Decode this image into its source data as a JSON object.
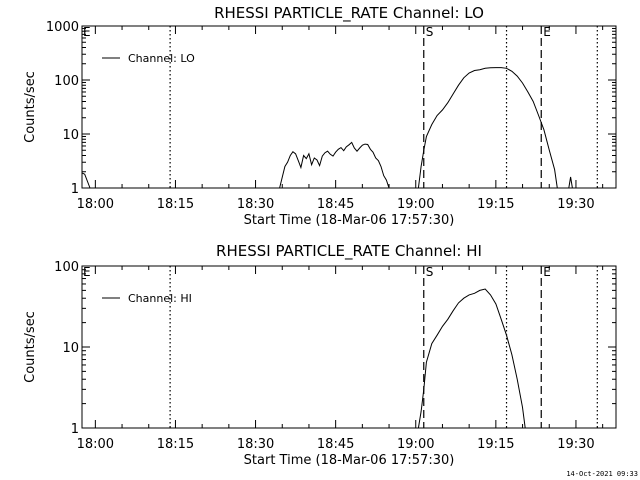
{
  "footer": {
    "timestamp": "14-Oct-2021 09:33"
  },
  "chart_data": [
    {
      "type": "line",
      "title": "RHESSI PARTICLE_RATE Channel: LO",
      "xlabel": "Start Time (18-Mar-06 17:57:30)",
      "ylabel": "Counts/sec",
      "y_scale": "log",
      "ylim": [
        1,
        1000
      ],
      "yticks": [
        1,
        10,
        100,
        1000
      ],
      "ytick_labels": [
        "1",
        "10",
        "100",
        "1000"
      ],
      "xlim": [
        "17:57:30",
        "19:37:30"
      ],
      "xticks": [
        "18:00",
        "18:15",
        "18:30",
        "18:45",
        "19:00",
        "19:15",
        "19:30"
      ],
      "legend": {
        "position": "top-left",
        "entries": [
          "Channel: LO"
        ]
      },
      "markers": [
        {
          "time": "18:14:00",
          "style": "dotted",
          "label": ""
        },
        {
          "time": "19:17:00",
          "style": "dotted",
          "label": ""
        },
        {
          "time": "19:34:00",
          "style": "dotted",
          "label": ""
        },
        {
          "time": "19:01:30",
          "style": "dashed",
          "label": "S"
        },
        {
          "time": "19:23:30",
          "style": "dashed",
          "label": "E"
        },
        {
          "time": "17:57:30",
          "style": "none",
          "label": "E"
        }
      ],
      "series": [
        {
          "name": "Channel: LO",
          "segments": [
            {
              "x": [
                "17:57:30",
                "17:58:00",
                "17:59:00"
              ],
              "y": [
                1.9,
                1.8,
                1.0
              ]
            },
            {
              "x": [
                "18:34:30",
                "18:35:00",
                "18:35:30",
                "18:36:00",
                "18:36:30",
                "18:37:00",
                "18:37:30",
                "18:38:00",
                "18:38:30",
                "18:39:00",
                "18:39:30",
                "18:40:00",
                "18:40:30",
                "18:41:00",
                "18:41:30",
                "18:42:00",
                "18:42:30",
                "18:43:00",
                "18:43:30",
                "18:44:00",
                "18:44:30",
                "18:45:00",
                "18:45:30",
                "18:46:00",
                "18:46:30",
                "18:47:00",
                "18:47:30",
                "18:48:00",
                "18:48:30",
                "18:49:00",
                "18:49:30",
                "18:50:00",
                "18:50:30",
                "18:51:00",
                "18:51:30",
                "18:52:00",
                "18:52:30",
                "18:53:00",
                "18:53:30",
                "18:54:00",
                "18:54:30",
                "18:55:00"
              ],
              "y": [
                1.0,
                1.6,
                2.5,
                3.0,
                4.0,
                4.7,
                4.3,
                3.2,
                2.4,
                4.0,
                3.5,
                4.3,
                2.7,
                3.6,
                3.3,
                2.6,
                3.9,
                4.5,
                4.8,
                4.2,
                3.9,
                4.6,
                5.2,
                5.6,
                4.9,
                5.8,
                6.3,
                7.0,
                5.5,
                4.8,
                5.5,
                6.2,
                6.5,
                6.4,
                5.2,
                4.6,
                3.6,
                3.2,
                2.5,
                1.7,
                1.4,
                1.0
              ]
            },
            {
              "x": [
                "19:00:30",
                "19:01:00",
                "19:01:30",
                "19:02:00",
                "19:03:00",
                "19:04:00",
                "19:05:00",
                "19:06:00",
                "19:07:00",
                "19:08:00",
                "19:09:00",
                "19:10:00",
                "19:11:00",
                "19:12:00",
                "19:13:00",
                "19:14:00",
                "19:15:00",
                "19:16:00",
                "19:17:00",
                "19:18:00",
                "19:19:00",
                "19:20:00",
                "19:21:00",
                "19:22:00",
                "19:23:00",
                "19:24:00",
                "19:25:00",
                "19:26:00",
                "19:26:30"
              ],
              "y": [
                1.0,
                2.5,
                5.0,
                9.0,
                15,
                22,
                28,
                38,
                55,
                80,
                110,
                135,
                150,
                155,
                165,
                168,
                170,
                170,
                165,
                145,
                118,
                88,
                60,
                40,
                22,
                12,
                5,
                2.2,
                1.0
              ]
            },
            {
              "x": [
                "19:28:40",
                "19:29:00",
                "19:29:20"
              ],
              "y": [
                1.0,
                1.6,
                1.0
              ]
            }
          ]
        }
      ]
    },
    {
      "type": "line",
      "title": "RHESSI PARTICLE_RATE Channel: HI",
      "xlabel": "Start Time (18-Mar-06 17:57:30)",
      "ylabel": "Counts/sec",
      "y_scale": "log",
      "ylim": [
        1,
        100
      ],
      "yticks": [
        1,
        10,
        100
      ],
      "ytick_labels": [
        "1",
        "10",
        "100"
      ],
      "xlim": [
        "17:57:30",
        "19:37:30"
      ],
      "xticks": [
        "18:00",
        "18:15",
        "18:30",
        "18:45",
        "19:00",
        "19:15",
        "19:30"
      ],
      "legend": {
        "position": "top-left",
        "entries": [
          "Channel: HI"
        ]
      },
      "markers": [
        {
          "time": "18:14:00",
          "style": "dotted",
          "label": ""
        },
        {
          "time": "19:17:00",
          "style": "dotted",
          "label": ""
        },
        {
          "time": "19:34:00",
          "style": "dotted",
          "label": ""
        },
        {
          "time": "19:01:30",
          "style": "dashed",
          "label": "S"
        },
        {
          "time": "19:23:30",
          "style": "dashed",
          "label": "E"
        },
        {
          "time": "17:57:30",
          "style": "none",
          "label": "E"
        }
      ],
      "series": [
        {
          "name": "Channel: HI",
          "segments": [
            {
              "x": [
                "19:00:30",
                "19:01:00",
                "19:01:30",
                "19:02:00",
                "19:03:00",
                "19:04:00",
                "19:05:00",
                "19:06:00",
                "19:07:00",
                "19:08:00",
                "19:09:00",
                "19:10:00",
                "19:11:00",
                "19:12:00",
                "19:13:00",
                "19:14:00",
                "19:15:00",
                "19:16:00",
                "19:17:00",
                "19:18:00",
                "19:19:00",
                "19:20:00",
                "19:20:30"
              ],
              "y": [
                1.0,
                1.6,
                3.0,
                6.5,
                11,
                14,
                18,
                22,
                28,
                35,
                40,
                44,
                46,
                50,
                52,
                44,
                34,
                22,
                14,
                8,
                4,
                1.8,
                1.0
              ]
            }
          ]
        }
      ]
    }
  ]
}
